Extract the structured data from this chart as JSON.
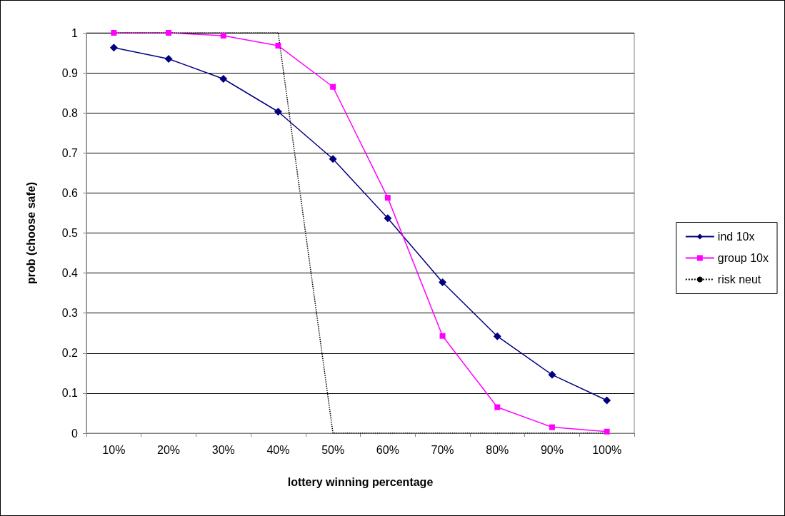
{
  "chart_data": {
    "type": "line",
    "xlabel": "lottery winning percentage",
    "ylabel": "prob (choose safe)",
    "categories": [
      "10%",
      "20%",
      "30%",
      "40%",
      "50%",
      "60%",
      "70%",
      "80%",
      "90%",
      "100%"
    ],
    "series": [
      {
        "name": "ind 10x",
        "color": "#000080",
        "marker": "diamond",
        "line_style": "solid",
        "values": [
          0.963,
          0.935,
          0.885,
          0.803,
          0.685,
          0.537,
          0.377,
          0.242,
          0.146,
          0.082
        ]
      },
      {
        "name": "group 10x",
        "color": "#ff00ff",
        "marker": "square",
        "line_style": "solid",
        "values": [
          1.0,
          1.0,
          0.993,
          0.968,
          0.865,
          0.588,
          0.243,
          0.065,
          0.015,
          0.004
        ]
      },
      {
        "name": "risk neut",
        "color": "#000000",
        "marker": "none",
        "line_style": "dotted",
        "values": [
          1,
          1,
          1,
          1,
          0,
          0,
          0,
          0,
          0,
          0
        ]
      }
    ],
    "ylim": [
      0,
      1
    ],
    "yticks": [
      0,
      0.1,
      0.2,
      0.3,
      0.4,
      0.5,
      0.6,
      0.7,
      0.8,
      0.9,
      1
    ],
    "grid": "y",
    "legend": "right"
  }
}
